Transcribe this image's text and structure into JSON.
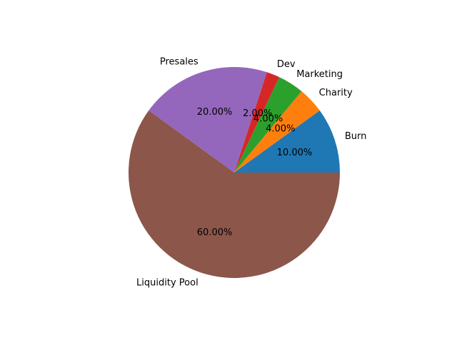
{
  "chart_data": {
    "type": "pie",
    "title": "",
    "slices": [
      {
        "label": "Burn",
        "value": 10,
        "pct_label": "10.00%",
        "color": "#1f77b4"
      },
      {
        "label": "Charity",
        "value": 4,
        "pct_label": "4.00%",
        "color": "#ff7f0e"
      },
      {
        "label": "Marketing",
        "value": 4,
        "pct_label": "4.00%",
        "color": "#2ca02c"
      },
      {
        "label": "Dev",
        "value": 2,
        "pct_label": "2.00%",
        "color": "#d62728"
      },
      {
        "label": "Presales",
        "value": 20,
        "pct_label": "20.00%",
        "color": "#9467bd"
      },
      {
        "label": "Liquidity Pool",
        "value": 60,
        "pct_label": "60.00%",
        "color": "#8c564b"
      }
    ],
    "start_angle_deg": 0,
    "direction": "counterclockwise",
    "legend": "none"
  }
}
